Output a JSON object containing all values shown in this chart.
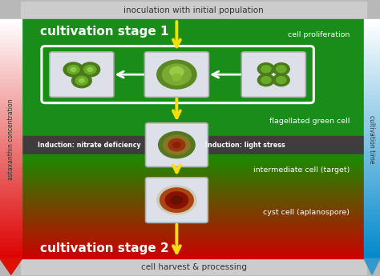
{
  "title_top": "inoculation with initial population",
  "title_bottom": "cell harvest & processing",
  "label_left": "astaxanthin concentration",
  "label_right": "cultivation time",
  "label_stage1": "cultivation stage 1",
  "label_stage2": "cultivation stage 2",
  "label_proliferation": "cell proliferation",
  "label_flagellated": "flagellated green cell",
  "label_intermediate": "intermediate cell (target)",
  "label_cyst": "cyst cell (aplanospore)",
  "label_nitrate": "Induction: nitrate deficiency",
  "label_light": "Induction: light stress",
  "arrow_yellow": "#ffdd00",
  "figsize": [
    4.74,
    3.45
  ],
  "dpi": 100,
  "xlim": [
    0,
    10
  ],
  "ylim": [
    0,
    10
  ],
  "gray_band_color": "#c0c0c0",
  "green_color": "#1a8a1a",
  "dark_band_color": "#404040",
  "red_color": "#cc1100"
}
